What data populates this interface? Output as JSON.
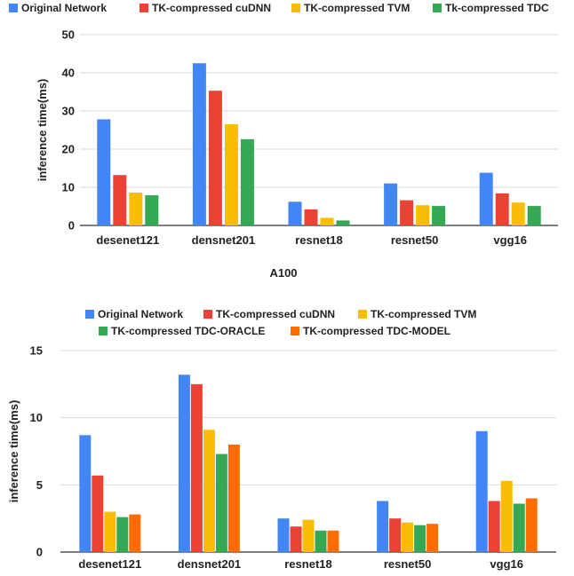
{
  "chart_data": [
    {
      "type": "bar",
      "title": "",
      "xlabel": "A100",
      "ylabel": "inference time(ms)",
      "ylim": [
        0,
        50
      ],
      "yticks": [
        0,
        10,
        20,
        30,
        40,
        50
      ],
      "grid": true,
      "legend_position": "top",
      "categories": [
        "desenet121",
        "densnet201",
        "resnet18",
        "resnet50",
        "vgg16"
      ],
      "series": [
        {
          "name": "Original Network",
          "color": "#4285f4",
          "values": [
            27.8,
            42.5,
            6.2,
            11.0,
            13.8
          ]
        },
        {
          "name": "TK-compressed cuDNN",
          "color": "#ea4335",
          "values": [
            13.2,
            35.3,
            4.2,
            6.6,
            8.4
          ]
        },
        {
          "name": "TK-compressed TVM",
          "color": "#fbbc04",
          "values": [
            8.6,
            26.5,
            2.0,
            5.3,
            6.0
          ]
        },
        {
          "name": "Tk-compressed TDC",
          "color": "#34a853",
          "values": [
            7.9,
            22.6,
            1.3,
            5.1,
            5.1
          ]
        }
      ]
    },
    {
      "type": "bar",
      "title": "",
      "xlabel": "",
      "ylabel": "inference time(ms)",
      "ylim": [
        0,
        15
      ],
      "yticks": [
        0,
        5,
        10,
        15
      ],
      "grid": true,
      "legend_position": "top",
      "categories": [
        "desenet121",
        "densnet201",
        "resnet18",
        "resnet50",
        "vgg16"
      ],
      "series": [
        {
          "name": "Original Network",
          "color": "#4285f4",
          "values": [
            8.7,
            13.2,
            2.5,
            3.8,
            9.0
          ]
        },
        {
          "name": "TK-compressed cuDNN",
          "color": "#ea4335",
          "values": [
            5.7,
            12.5,
            1.9,
            2.5,
            3.8
          ]
        },
        {
          "name": "TK-compressed TVM",
          "color": "#fbbc04",
          "values": [
            3.0,
            9.1,
            2.4,
            2.2,
            5.3
          ]
        },
        {
          "name": "TK-compressed TDC-ORACLE",
          "color": "#34a853",
          "values": [
            2.6,
            7.3,
            1.6,
            2.0,
            3.6
          ]
        },
        {
          "name": "TK-compressed TDC-MODEL",
          "color": "#ff6d01",
          "values": [
            2.8,
            8.0,
            1.6,
            2.1,
            4.0
          ]
        }
      ]
    }
  ]
}
